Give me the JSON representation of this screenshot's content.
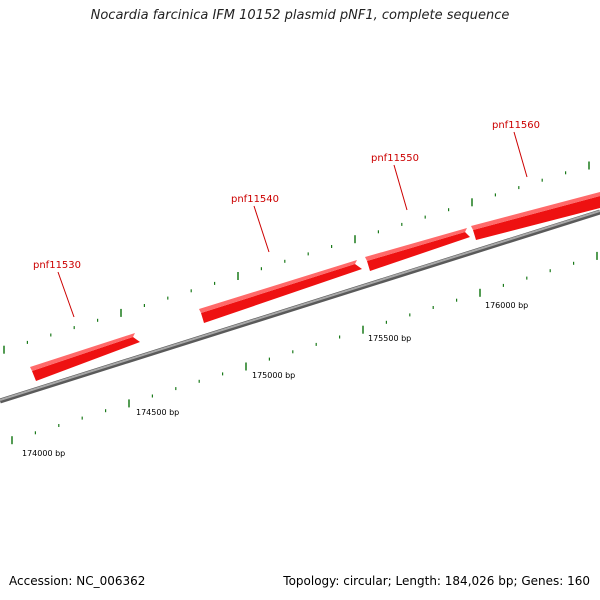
{
  "title": "Nocardia farcinica IFM 10152 plasmid pNF1, complete sequence",
  "footer": {
    "accession": "Accession: NC_006362",
    "summary": "Topology: circular; Length: 184,026 bp; Genes: 160"
  },
  "colors": {
    "gene": "#ee1111",
    "gene_label": "#cc0000",
    "backbone": "#888888",
    "ticks": "#1a7a1a"
  },
  "genes": [
    {
      "name": "pnf11530",
      "strand": "+"
    },
    {
      "name": "pnf11540",
      "strand": "+"
    },
    {
      "name": "pnf11550",
      "strand": "+"
    },
    {
      "name": "pnf11560",
      "strand": "+"
    }
  ],
  "position_labels": [
    "174000 bp",
    "174500 bp",
    "175000 bp",
    "175500 bp",
    "176000 bp"
  ]
}
